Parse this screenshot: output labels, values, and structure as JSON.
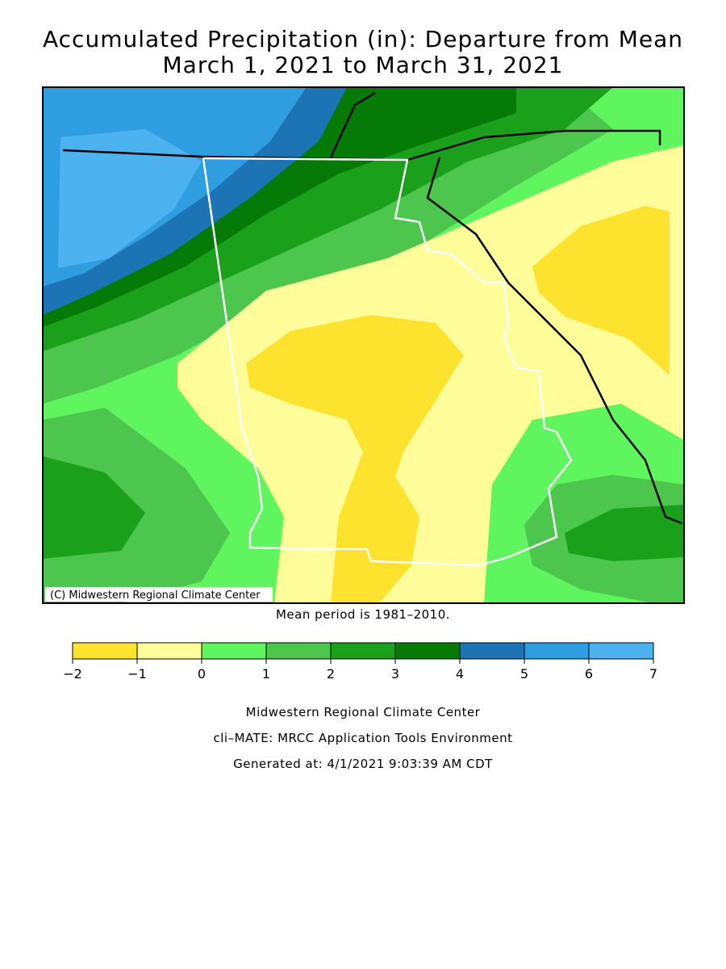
{
  "title": [
    "Accumulated Precipitation (in): Departure from Mean",
    "March 1, 2021 to March 31, 2021"
  ],
  "map": {
    "credit": "(C) Midwestern Regional Climate Center"
  },
  "note": "Mean period is 1981–2010.",
  "legend": {
    "ticks": [
      {
        "value": -2,
        "label": "−2"
      },
      {
        "value": -1,
        "label": "−1"
      },
      0,
      1,
      2,
      3,
      4,
      5,
      6,
      7
    ],
    "colors": [
      "#fde22e",
      "#fffd9a",
      "#5ef55e",
      "#4cc64c",
      "#1ba01b",
      "#067a06",
      "#1c74b4",
      "#2f9ee0",
      "#4cb3f0"
    ]
  },
  "footer": [
    "Midwestern Regional Climate Center",
    "cli–MATE: MRCC Application Tools Environment",
    "Generated at: 4/1/2021 9:03:39 AM CDT"
  ]
}
